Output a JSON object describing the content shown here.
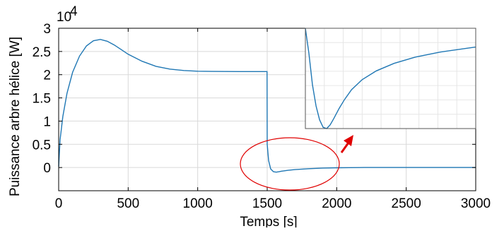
{
  "chart_data": [
    {
      "type": "line",
      "ylabel": "Puissance arbre hélice [W]",
      "xlabel": "Temps [s]",
      "y_exponent": {
        "base": "10",
        "power": "4"
      },
      "xlim": [
        0,
        3000
      ],
      "ylim": [
        -0.5,
        3
      ],
      "x_ticks": [
        0,
        500,
        1000,
        1500,
        2000,
        2500,
        3000
      ],
      "x_tick_labels": [
        "0",
        "500",
        "1000",
        "1500",
        "2000",
        "2500",
        "3000"
      ],
      "y_ticks": [
        0,
        0.5,
        1,
        1.5,
        2,
        2.5,
        3
      ],
      "y_tick_labels": [
        "0",
        "0.5",
        "1",
        "1.5",
        "2",
        "2.5",
        "3"
      ],
      "grid": true,
      "series": [
        {
          "color": "#1f77b4",
          "x": [
            0,
            10,
            30,
            60,
            100,
            150,
            200,
            250,
            300,
            350,
            400,
            450,
            500,
            600,
            700,
            800,
            900,
            1000,
            1100,
            1200,
            1300,
            1400,
            1499,
            1500,
            1510,
            1525,
            1545,
            1565,
            1585,
            1600,
            1650,
            1700,
            1750,
            1800,
            1900,
            2000,
            2100,
            2200,
            2500,
            3000
          ],
          "y": [
            0.02,
            0.6,
            1.1,
            1.6,
            2.05,
            2.4,
            2.62,
            2.73,
            2.76,
            2.72,
            2.64,
            2.54,
            2.44,
            2.29,
            2.18,
            2.12,
            2.09,
            2.075,
            2.07,
            2.068,
            2.067,
            2.067,
            2.067,
            0.5,
            0.15,
            -0.03,
            -0.09,
            -0.1,
            -0.09,
            -0.08,
            -0.06,
            -0.045,
            -0.035,
            -0.025,
            -0.012,
            -0.005,
            -0.002,
            0,
            0,
            0
          ]
        }
      ]
    },
    {
      "type": "line",
      "role": "inset-zoom",
      "grid": true,
      "xlim": [
        1520,
        2000
      ],
      "ylim": [
        -0.1,
        -0.02
      ],
      "series": [
        {
          "color": "#1f77b4",
          "x": [
            1520,
            1530,
            1540,
            1550,
            1560,
            1570,
            1580,
            1590,
            1600,
            1615,
            1630,
            1650,
            1680,
            1720,
            1770,
            1830,
            1900,
            2000
          ],
          "y": [
            -0.014,
            -0.04,
            -0.065,
            -0.082,
            -0.093,
            -0.099,
            -0.1,
            -0.097,
            -0.092,
            -0.084,
            -0.077,
            -0.069,
            -0.061,
            -0.054,
            -0.048,
            -0.043,
            -0.039,
            -0.035
          ]
        }
      ]
    }
  ],
  "annotations": {
    "highlight_ellipse_color": "#e00000",
    "arrow_color": "#e00000"
  }
}
